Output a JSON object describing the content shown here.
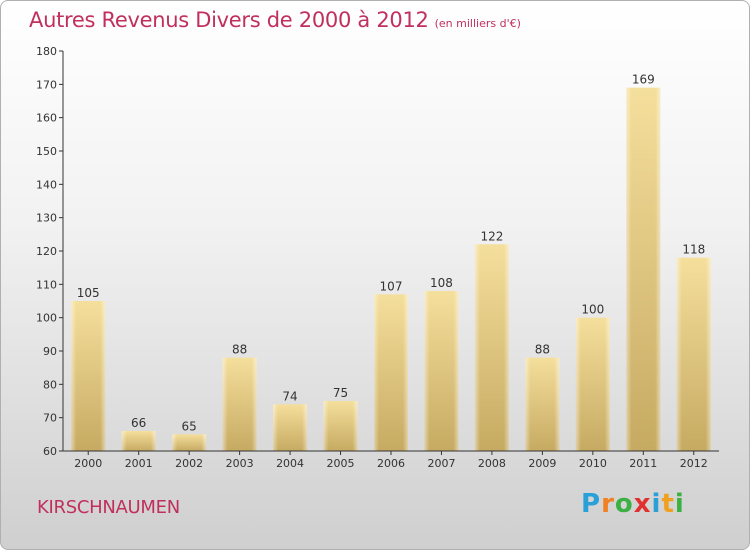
{
  "title": "Autres Revenus Divers de 2000 à 2012",
  "unit_note": "(en milliers d'€)",
  "commune": "KIRSCHNAUMEN",
  "logo": {
    "letters": [
      "P",
      "r",
      "o",
      "x",
      "i",
      "t",
      "i"
    ],
    "colors": [
      "#2aa0d8",
      "#f08020",
      "#3cb043",
      "#e03030",
      "#2aa0d8",
      "#f0a020",
      "#3cb043"
    ]
  },
  "colors": {
    "accent": "#c0305e",
    "bar_light": "#f3dc98",
    "bar_dark": "#c8ad66",
    "axis": "#333333"
  },
  "chart_data": {
    "type": "bar",
    "categories": [
      "2000",
      "2001",
      "2002",
      "2003",
      "2004",
      "2005",
      "2006",
      "2007",
      "2008",
      "2009",
      "2010",
      "2011",
      "2012"
    ],
    "values": [
      105,
      66,
      65,
      88,
      74,
      75,
      107,
      108,
      122,
      88,
      100,
      169,
      118
    ],
    "ylim": [
      60,
      180
    ],
    "yticks": [
      60,
      70,
      80,
      90,
      100,
      110,
      120,
      130,
      140,
      150,
      160,
      170,
      180
    ],
    "xlabel": "",
    "ylabel": "",
    "grid": false
  }
}
